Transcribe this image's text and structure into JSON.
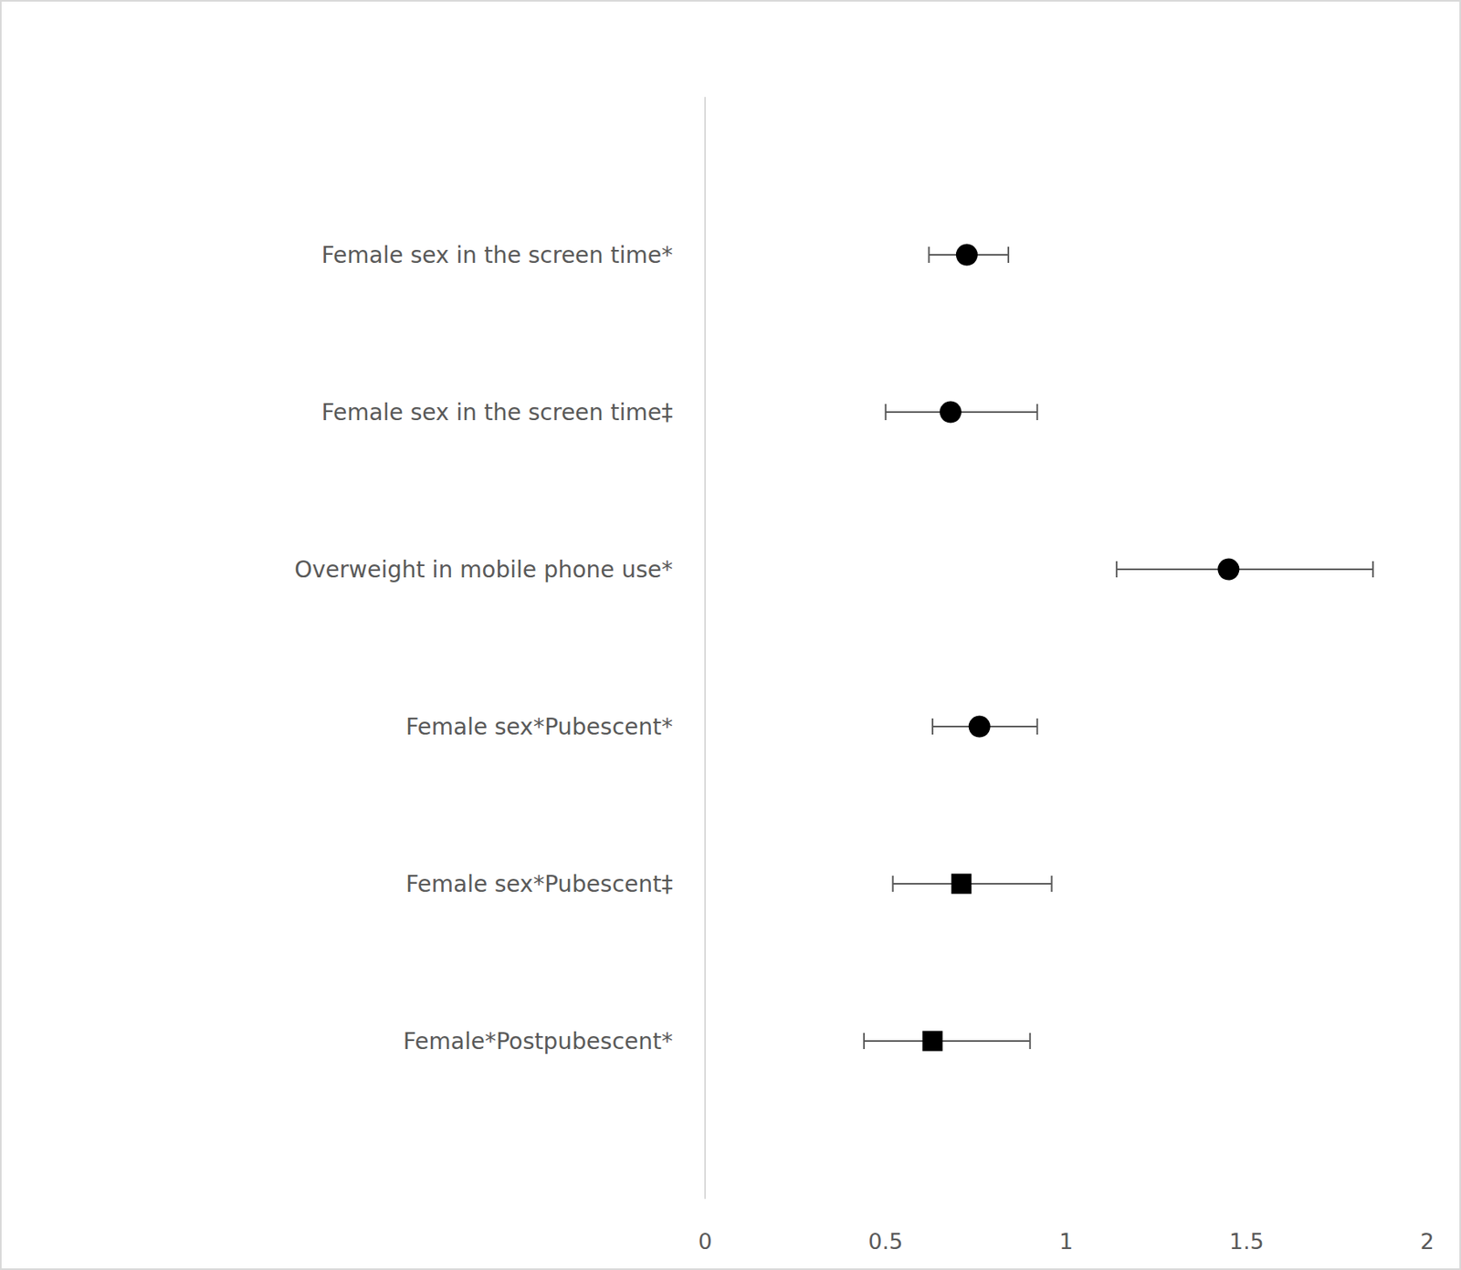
{
  "chart_data": {
    "type": "scatter",
    "orientation": "horizontal",
    "grid": false,
    "categories": [
      "Female sex in the screen time*",
      "Female sex in the screen time‡",
      "Overweight in mobile phone use*",
      "Female sex*Pubescent*",
      "Female sex*Pubescent‡",
      "Female*Postpubescent*"
    ],
    "xlim": [
      0,
      2
    ],
    "xticks": [
      0,
      0.5,
      1,
      1.5,
      2
    ],
    "series": [
      {
        "marker": "circle",
        "color": "#000000",
        "values": [
          0.725,
          0.68,
          1.45,
          0.76,
          null,
          null
        ],
        "lower": [
          0.62,
          0.5,
          1.14,
          0.63,
          null,
          null
        ],
        "upper": [
          0.84,
          0.92,
          1.85,
          0.92,
          null,
          null
        ]
      },
      {
        "marker": "square",
        "color": "#000000",
        "values": [
          null,
          null,
          null,
          null,
          0.71,
          0.63
        ],
        "lower": [
          null,
          null,
          null,
          null,
          0.52,
          0.44
        ],
        "upper": [
          null,
          null,
          null,
          null,
          0.96,
          0.9
        ]
      }
    ]
  }
}
